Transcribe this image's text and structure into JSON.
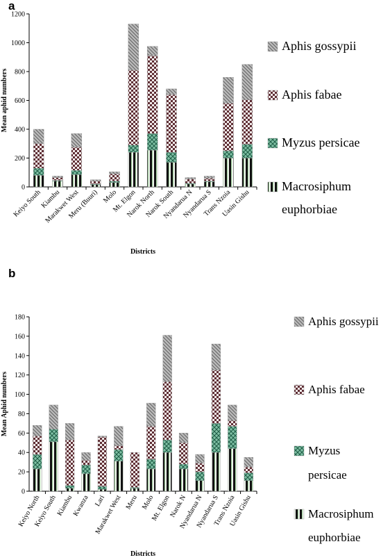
{
  "chart_data": [
    {
      "panel_label": "a",
      "type": "bar",
      "stacked": true,
      "title": "",
      "xlabel": "Districts",
      "ylabel": "Mean aphid numbers",
      "ylim": [
        0,
        1200
      ],
      "yticks": [
        0,
        200,
        400,
        600,
        800,
        1000,
        1200
      ],
      "categories": [
        "Keiyo South",
        "Kiambu",
        "Marakwet West",
        "Meru (Buuri)",
        "Molo",
        "Mt. Elgon",
        "Narok North",
        "Narok South",
        "Nyandarua N",
        "Nyandarua S",
        "Trans Nzoia",
        "Uasin Gishu"
      ],
      "legend_position": "right",
      "series": [
        {
          "name": "Macrosiphum euphorbiae",
          "values": [
            80,
            40,
            85,
            15,
            30,
            240,
            255,
            170,
            20,
            35,
            200,
            200
          ]
        },
        {
          "name": "Myzus persicae",
          "values": [
            50,
            5,
            30,
            5,
            10,
            50,
            115,
            70,
            5,
            5,
            50,
            95
          ]
        },
        {
          "name": "Aphis fabae",
          "values": [
            170,
            20,
            160,
            20,
            50,
            520,
            540,
            400,
            30,
            20,
            330,
            310
          ]
        },
        {
          "name": "Aphis gossypii",
          "values": [
            100,
            10,
            95,
            10,
            15,
            320,
            65,
            40,
            10,
            15,
            180,
            245
          ]
        }
      ]
    },
    {
      "panel_label": "b",
      "type": "bar",
      "stacked": true,
      "title": "",
      "xlabel": "Districts",
      "ylabel": "Mean Aphid numbers",
      "ylim": [
        0,
        180
      ],
      "yticks": [
        0,
        20,
        40,
        60,
        80,
        100,
        120,
        140,
        160,
        180
      ],
      "categories": [
        "Keiyo North",
        "Keiyo South",
        "Kiambu",
        "Kwanza",
        "Lari",
        "Marakwet West",
        "Meru",
        "Molo",
        "Mt. Elgon",
        "Narok N",
        "Nyandarua N",
        "Nyandarua S",
        "Trans Nzoia",
        "Uasin Gishu"
      ],
      "legend_position": "right",
      "series": [
        {
          "name": "Macrosiphum euphorbiae",
          "values": [
            23,
            51,
            3,
            18,
            2,
            31,
            3,
            23,
            40,
            23,
            11,
            40,
            44,
            11
          ]
        },
        {
          "name": "Myzus persicae",
          "values": [
            15,
            13,
            3,
            9,
            3,
            12,
            1,
            10,
            13,
            5,
            9,
            30,
            23,
            8
          ]
        },
        {
          "name": "Aphis fabae",
          "values": [
            19,
            0,
            47,
            5,
            51,
            4,
            36,
            34,
            60,
            22,
            9,
            55,
            6,
            6
          ]
        },
        {
          "name": "Aphis gossypii",
          "values": [
            11,
            25,
            17,
            8,
            1,
            20,
            0,
            24,
            48,
            10,
            9,
            27,
            16,
            10
          ]
        }
      ]
    }
  ]
}
